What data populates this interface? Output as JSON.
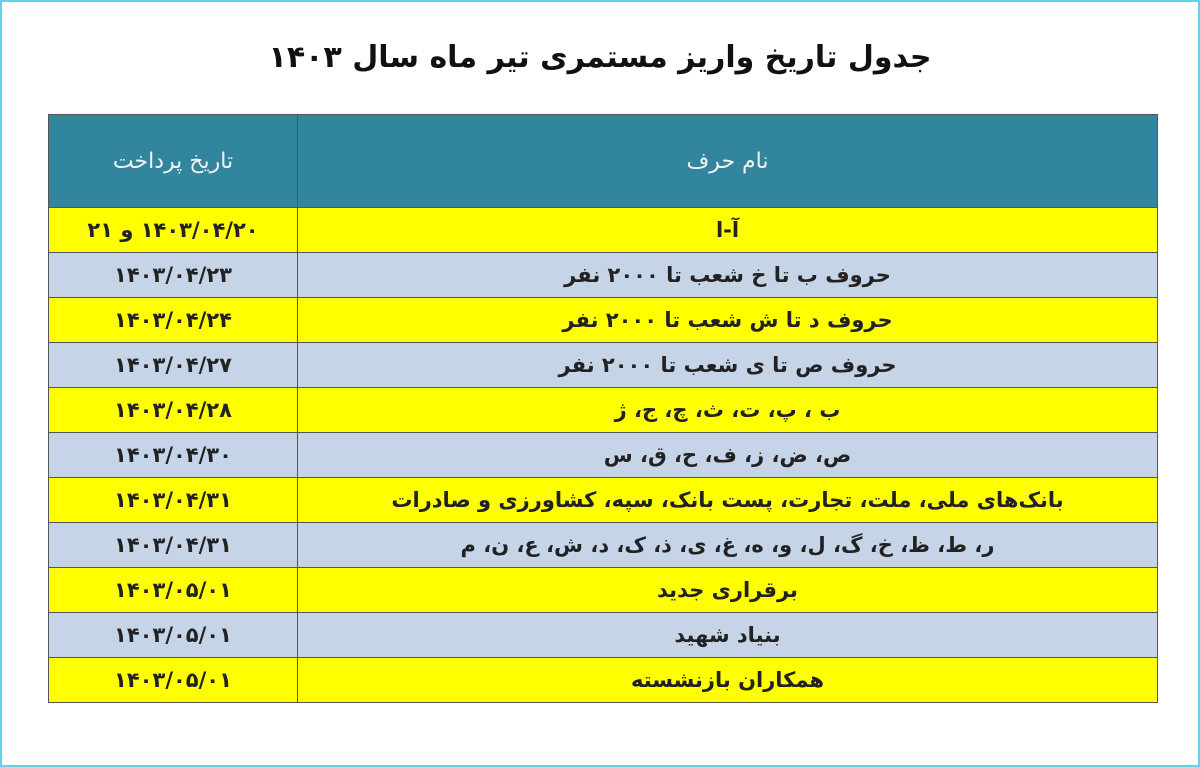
{
  "title": "جدول تاریخ واریز مستمری تیر ماه سال ۱۴۰۳",
  "table": {
    "header": [
      "نام حرف",
      "تاریخ پرداخت"
    ],
    "rows": [
      [
        "آ-ا",
        "۱۴۰۳/۰۴/۲۰ و ۲۱"
      ],
      [
        "حروف ب تا خ شعب تا ۲۰۰۰ نفر",
        "۱۴۰۳/۰۴/۲۳"
      ],
      [
        "حروف د تا ش شعب تا ۲۰۰۰ نفر",
        "۱۴۰۳/۰۴/۲۴"
      ],
      [
        "حروف ص تا ی  شعب تا ۲۰۰۰ نفر",
        "۱۴۰۳/۰۴/۲۷"
      ],
      [
        "ب ، پ، ت، ث، چ، ج، ژ",
        "۱۴۰۳/۰۴/۲۸"
      ],
      [
        "ص، ض، ز، ف، ح، ق، س",
        "۱۴۰۳/۰۴/۳۰"
      ],
      [
        "بانک‌های ملی، ملت، تجارت، پست بانک، سپه، کشاورزی و صادرات",
        "۱۴۰۳/۰۴/۳۱"
      ],
      [
        "ر، ط، ظ، خ، گ، ل، و، ه، غ، ی، ذ، ک، د، ش، ع، ن، م",
        "۱۴۰۳/۰۴/۳۱"
      ],
      [
        "برقراری جدید",
        "۱۴۰۳/۰۵/۰۱"
      ],
      [
        "بنیاد شهید",
        "۱۴۰۳/۰۵/۰۱"
      ],
      [
        "همکاران بازنشسته",
        "۱۴۰۳/۰۵/۰۱"
      ]
    ]
  }
}
